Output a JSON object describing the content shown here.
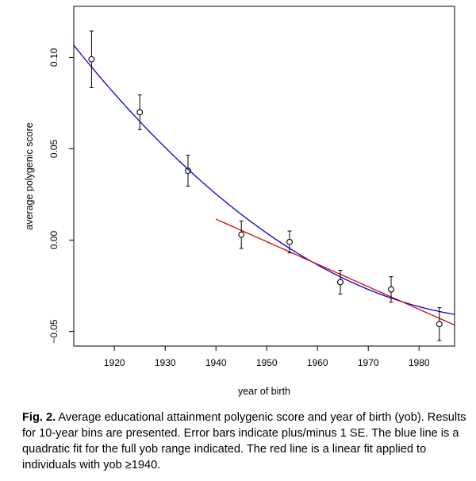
{
  "caption": {
    "label": "Fig. 2.",
    "text": "Average educational attainment polygenic score and year of birth (yob). Results for 10-year bins are presented. Error bars indicate plus/minus 1 SE. The blue line is a quadratic fit for the full yob range indicated. The red line is a linear fit applied to individuals with yob ≥1940."
  },
  "chart_data": {
    "type": "scatter",
    "xlabel": "year of birth",
    "ylabel": "average polygenic score",
    "xlim": [
      1912,
      1987
    ],
    "ylim": [
      -0.058,
      0.128
    ],
    "xticks": [
      1920,
      1930,
      1940,
      1950,
      1960,
      1970,
      1980
    ],
    "yticks": [
      -0.05,
      0.0,
      0.05,
      0.1
    ],
    "ytick_labels": [
      "−0.05",
      "0.00",
      "0.05",
      "0.10"
    ],
    "grid": false,
    "points": [
      {
        "x": 1915.5,
        "y": 0.099,
        "se": 0.0155
      },
      {
        "x": 1925.0,
        "y": 0.07,
        "se": 0.0095
      },
      {
        "x": 1934.5,
        "y": 0.038,
        "se": 0.0085
      },
      {
        "x": 1945.0,
        "y": 0.003,
        "se": 0.0075
      },
      {
        "x": 1954.5,
        "y": -0.001,
        "se": 0.006
      },
      {
        "x": 1964.5,
        "y": -0.023,
        "se": 0.0065
      },
      {
        "x": 1974.5,
        "y": -0.027,
        "se": 0.007
      },
      {
        "x": 1984.0,
        "y": -0.046,
        "se": 0.009
      }
    ],
    "series": [
      {
        "fit": "quadratic",
        "color": "#0000dd",
        "x_range": [
          1912,
          1987
        ],
        "points": [
          [
            1912,
            0.1065
          ],
          [
            1935,
            0.038
          ],
          [
            1960,
            -0.014
          ],
          [
            1987,
            -0.0405
          ]
        ]
      },
      {
        "fit": "linear",
        "color": "#dd0000",
        "x_range": [
          1940,
          1987
        ],
        "points": [
          [
            1940,
            0.0115
          ],
          [
            1987,
            -0.0465
          ]
        ]
      }
    ]
  }
}
